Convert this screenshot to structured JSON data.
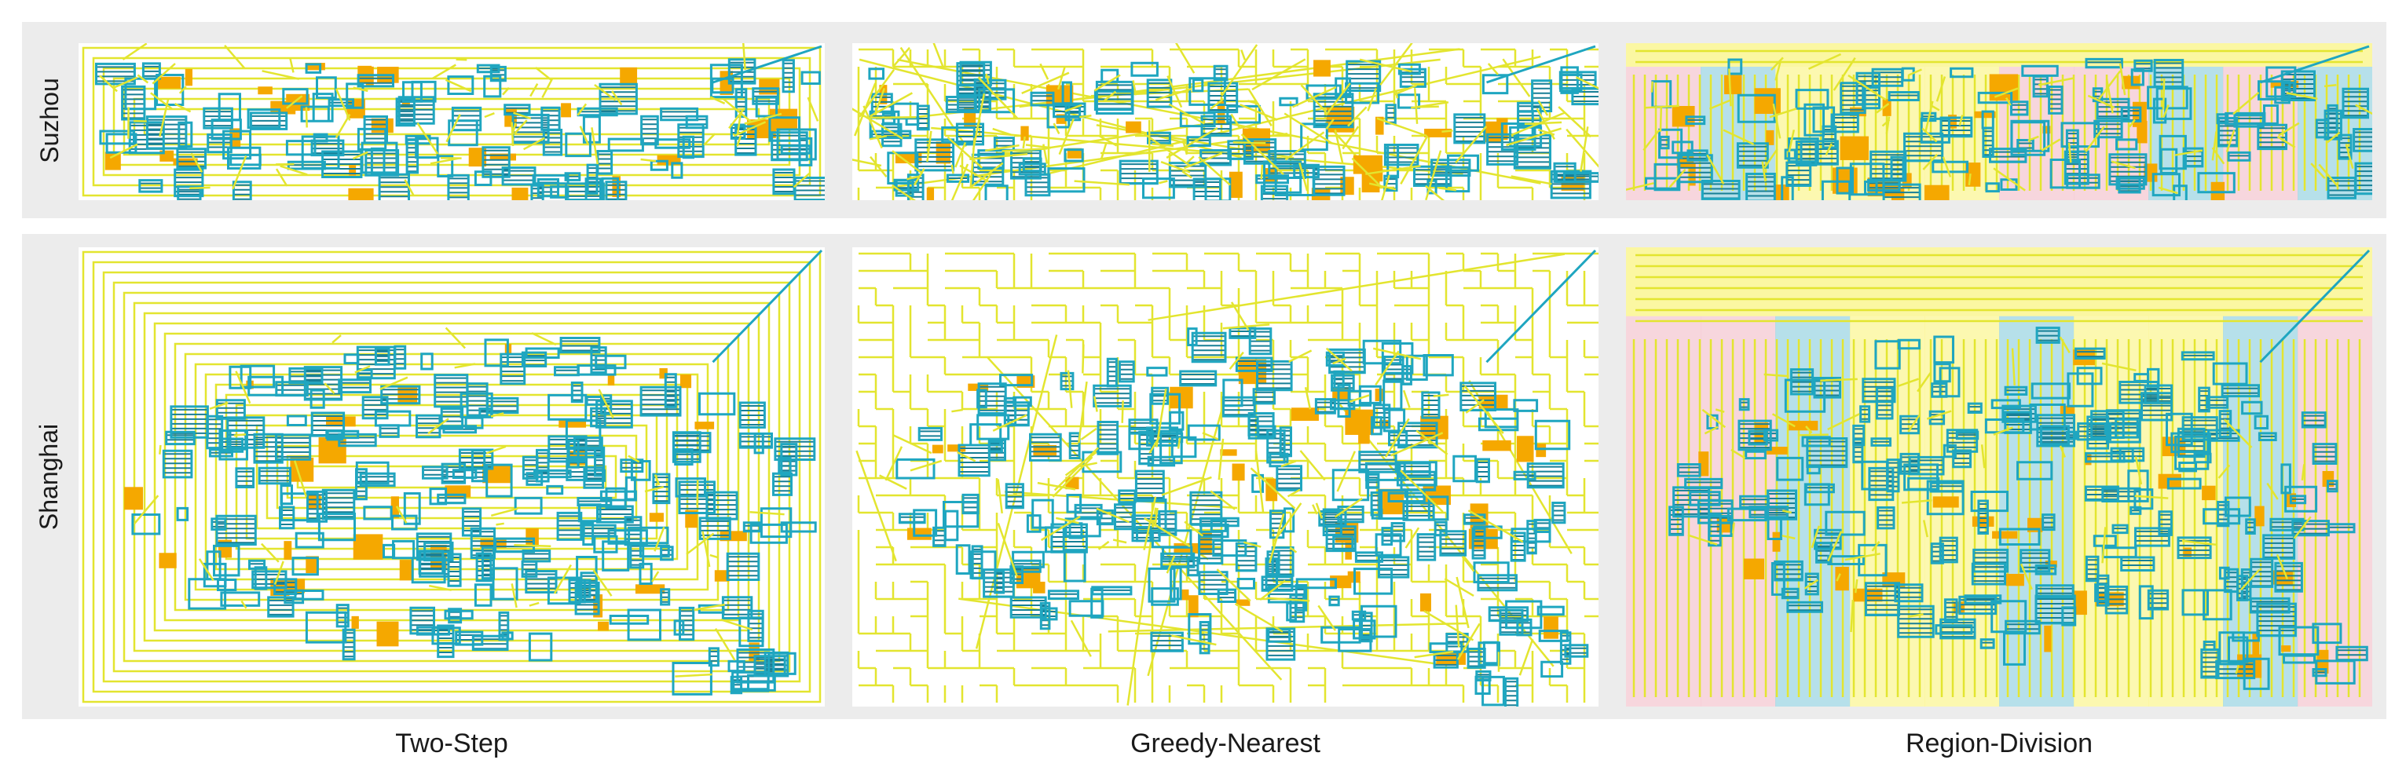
{
  "rows": [
    {
      "id": "suzhou",
      "label": "Suzhou"
    },
    {
      "id": "shanghai",
      "label": "Shanghai"
    }
  ],
  "columns": [
    {
      "id": "two-step",
      "label": "Two-Step"
    },
    {
      "id": "greedy-nearest",
      "label": "Greedy-Nearest"
    },
    {
      "id": "region-division",
      "label": "Region-Division"
    }
  ],
  "colors": {
    "background_strip": "#ececec",
    "panel_background": "#ffffff",
    "path_yellow": "#e3e52f",
    "path_teal": "#1fa6c0",
    "block_orange": "#f5a800",
    "region_yellow": "#fbf7a2",
    "region_pink": "#f6cfd7",
    "region_lightblue": "#a9dbe6",
    "region_green": "#d9f59a"
  }
}
